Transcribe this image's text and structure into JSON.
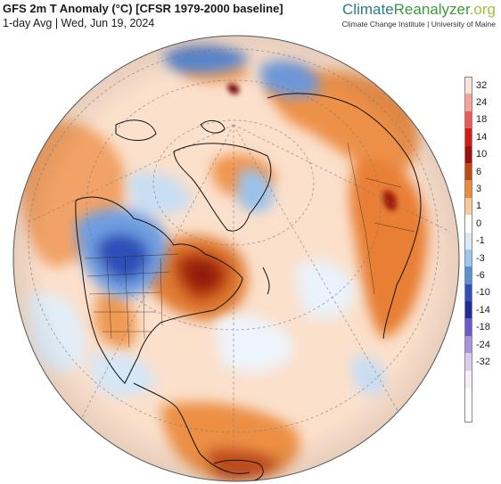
{
  "header": {
    "title": "GFS 2m T Anomaly (°C) [CFSR 1979-2000 baseline]",
    "subtitle": "1-day Avg | Wed, Jun 19, 2024"
  },
  "brand": {
    "logo_part1": "Climate",
    "logo_part2": "Reanalyzer",
    "logo_part3": ".org",
    "institution": "Climate Change Institute | University of Maine"
  },
  "legend": {
    "items": [
      {
        "label": "32",
        "color": "#fbe3d9"
      },
      {
        "label": "24",
        "color": "#f4a39a"
      },
      {
        "label": "18",
        "color": "#ee5b55"
      },
      {
        "label": "14",
        "color": "#d7191c"
      },
      {
        "label": "10",
        "color": "#9e0e0e"
      },
      {
        "label": "6",
        "color": "#c24a12"
      },
      {
        "label": "3",
        "color": "#ec8a3c"
      },
      {
        "label": "1",
        "color": "#f8c79a"
      },
      {
        "label": "0",
        "color": "#ffffff"
      },
      {
        "label": "-1",
        "color": "#dbe9f5"
      },
      {
        "label": "-3",
        "color": "#9fc6ea"
      },
      {
        "label": "-6",
        "color": "#5b8fd6"
      },
      {
        "label": "-10",
        "color": "#2e4fb8"
      },
      {
        "label": "-14",
        "color": "#1f2d96"
      },
      {
        "label": "-18",
        "color": "#6b5bc8"
      },
      {
        "label": "-24",
        "color": "#a994d8"
      },
      {
        "label": "-32",
        "color": "#d9cdee"
      },
      {
        "label": "",
        "color": "#f4eef8"
      }
    ]
  }
}
